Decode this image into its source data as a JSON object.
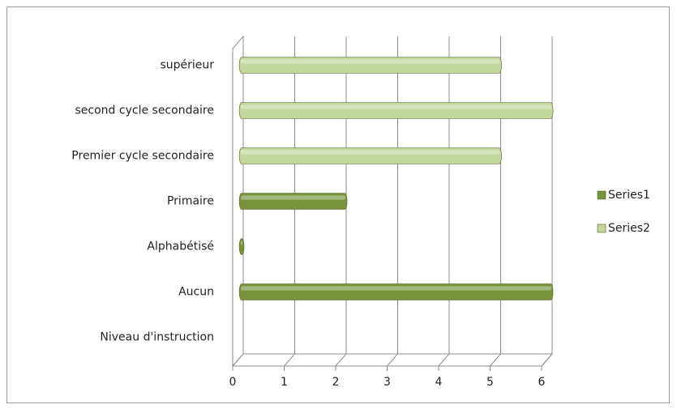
{
  "chart_data": {
    "type": "bar3d_horizontal",
    "categories": [
      "Niveau d'instruction",
      "Aucun",
      "Alphabétisé",
      "Primaire",
      "Premier cycle secondaire",
      "second cycle secondaire",
      "supérieur"
    ],
    "series": [
      {
        "name": "Series1",
        "color": "#77933c",
        "values": [
          null,
          6,
          0,
          2,
          null,
          null,
          null
        ]
      },
      {
        "name": "Series2",
        "color": "#c3d69b",
        "values": [
          null,
          null,
          null,
          null,
          5,
          6,
          5
        ]
      }
    ],
    "xlim": [
      0,
      6
    ],
    "xticks": [
      0,
      1,
      2,
      3,
      4,
      5,
      6
    ],
    "grid": true,
    "legend": "right"
  }
}
